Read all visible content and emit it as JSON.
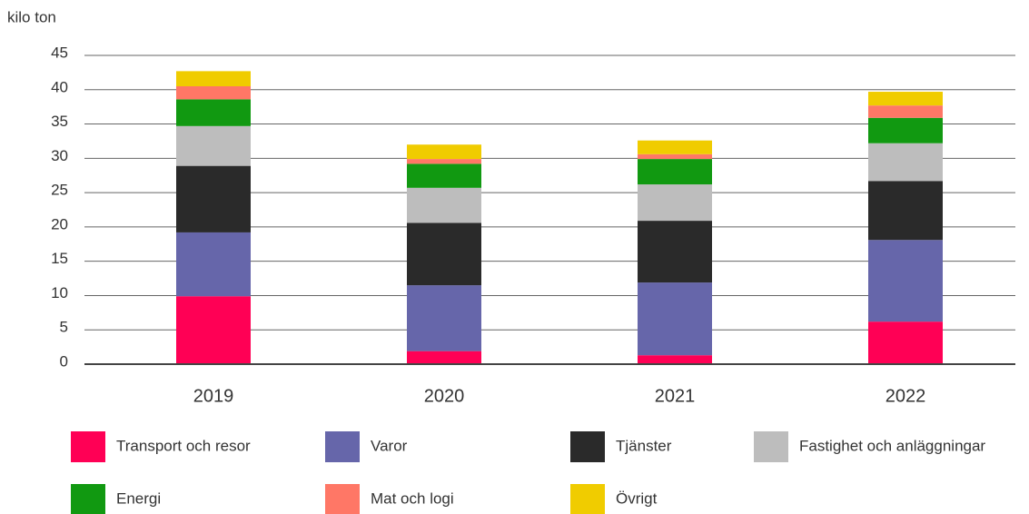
{
  "chart_data": {
    "type": "stacked_bar",
    "y_label": "kilo ton",
    "categories": [
      "2019",
      "2020",
      "2021",
      "2022"
    ],
    "series": [
      {
        "name": "Transport och resor",
        "color": "#ff0055",
        "values": [
          9.9,
          1.9,
          1.3,
          6.2
        ]
      },
      {
        "name": "Varor",
        "color": "#6666aa",
        "values": [
          9.3,
          9.6,
          10.6,
          11.9
        ]
      },
      {
        "name": "Tjänster",
        "color": "#2a2a2a",
        "values": [
          9.7,
          9.1,
          9.0,
          8.6
        ]
      },
      {
        "name": "Fastighet och anläggningar",
        "color": "#bdbdbd",
        "values": [
          5.8,
          5.1,
          5.3,
          5.5
        ]
      },
      {
        "name": "Energi",
        "color": "#119911",
        "values": [
          3.9,
          3.5,
          3.7,
          3.7
        ]
      },
      {
        "name": "Mat och logi",
        "color": "#ff7766",
        "values": [
          1.9,
          0.7,
          0.7,
          1.8
        ]
      },
      {
        "name": "Övrigt",
        "color": "#f0cc00",
        "values": [
          2.2,
          2.1,
          2.0,
          2.0
        ]
      }
    ],
    "ylim": [
      0,
      45
    ],
    "yticks": [
      0,
      5,
      10,
      15,
      20,
      25,
      30,
      35,
      40,
      45
    ],
    "grid": true,
    "legend": "bottom"
  }
}
